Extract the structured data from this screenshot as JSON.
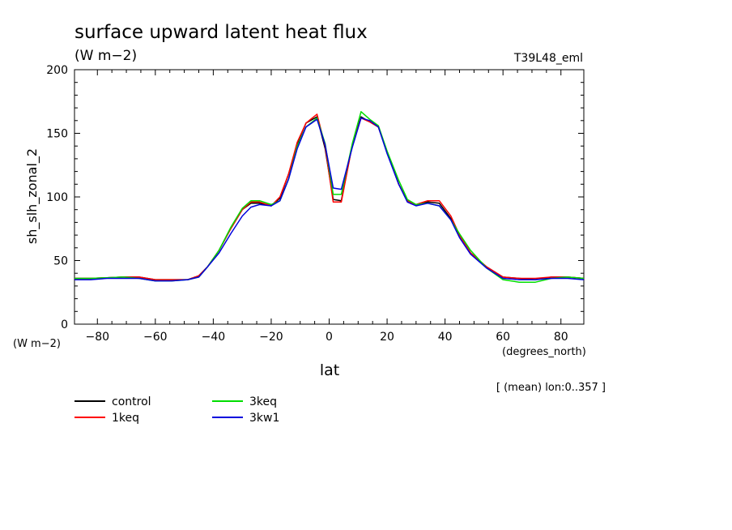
{
  "chart_data": {
    "type": "line",
    "title": "surface upward latent heat flux",
    "title_units": "(W m−2)",
    "experiment": "T39L48_eml",
    "ylabel": "sh_slh_zonal_2",
    "y_units": "(W m−2)",
    "xlabel": "lat",
    "x_units": "(degrees_north)",
    "note": "[ (mean) lon:0..357 ]",
    "xlim": [
      -87.9,
      87.9
    ],
    "ylim": [
      0,
      200
    ],
    "xticks": [
      -80,
      -60,
      -40,
      -20,
      0,
      20,
      40,
      60,
      80
    ],
    "yticks": [
      0,
      50,
      100,
      150,
      200
    ],
    "x": [
      -87.9,
      -82.3,
      -76.7,
      -71.2,
      -65.6,
      -60.0,
      -54.4,
      -48.8,
      -45.0,
      -42.0,
      -38.0,
      -34.0,
      -30.0,
      -27.0,
      -24.0,
      -20.0,
      -17.0,
      -14.0,
      -11.0,
      -8.0,
      -4.2,
      -1.4,
      1.4,
      4.2,
      8.0,
      11.0,
      14.0,
      17.0,
      20.0,
      24.0,
      27.0,
      30.0,
      34.0,
      38.0,
      42.0,
      45.0,
      48.8,
      54.4,
      60.0,
      65.6,
      71.2,
      76.7,
      82.3,
      87.9
    ],
    "legend_placement": "bottom-left",
    "series": [
      {
        "name": "control",
        "color": "#000000",
        "values": [
          36,
          36,
          36.5,
          37,
          37,
          35,
          35,
          35,
          38,
          45,
          58,
          75,
          90,
          95,
          95,
          93,
          99,
          118,
          142,
          158,
          163,
          138,
          98,
          97,
          141,
          163,
          159,
          155,
          135,
          110,
          97,
          94,
          96,
          95,
          83,
          70,
          56,
          45,
          37,
          36,
          35,
          37,
          37,
          36
        ]
      },
      {
        "name": "1keq",
        "color": "#ff0000",
        "values": [
          36,
          36,
          36.5,
          37,
          37,
          35,
          35,
          35,
          38,
          45,
          58,
          75,
          90,
          96,
          96,
          93,
          100,
          118,
          143,
          158,
          165,
          140,
          96,
          96,
          141,
          162,
          159,
          155,
          135,
          110,
          97,
          94,
          97,
          97,
          85,
          70,
          56,
          45,
          37,
          36,
          36,
          37,
          37,
          36
        ]
      },
      {
        "name": "3keq",
        "color": "#00dd00",
        "values": [
          36,
          36,
          36.5,
          37,
          36,
          34,
          34,
          35,
          37,
          45,
          58,
          76,
          91,
          97,
          97,
          94,
          97,
          114,
          140,
          155,
          162,
          142,
          102,
          102,
          142,
          167,
          161,
          156,
          136,
          113,
          98,
          94,
          95,
          93,
          82,
          71,
          58,
          44,
          35,
          33,
          33,
          36,
          37,
          36
        ]
      },
      {
        "name": "3kw1",
        "color": "#0000dd",
        "values": [
          35,
          35,
          36,
          36,
          36,
          34,
          34,
          35,
          37,
          45,
          56,
          71,
          85,
          92,
          94,
          93,
          97,
          114,
          138,
          155,
          161,
          141,
          107,
          106,
          139,
          162,
          160,
          155,
          134,
          110,
          96,
          93,
          95,
          93,
          82,
          68,
          55,
          44,
          36,
          35,
          35,
          36,
          36,
          35
        ]
      }
    ]
  }
}
